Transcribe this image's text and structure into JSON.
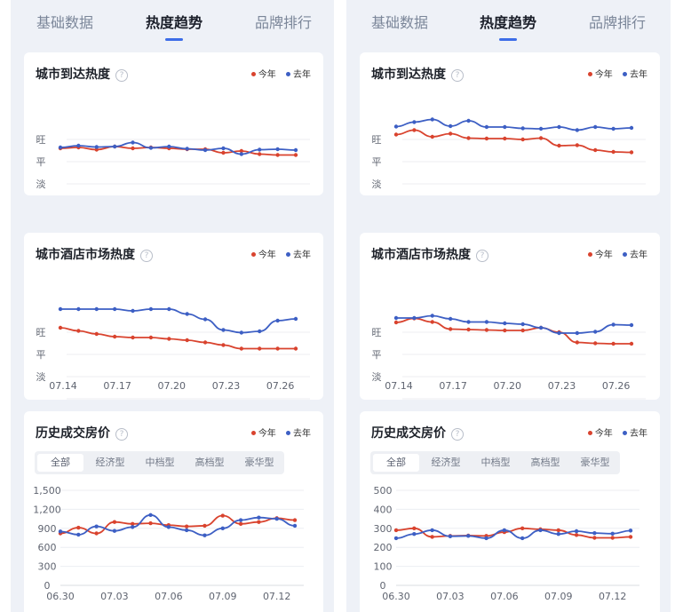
{
  "panels": [
    {
      "tabs": [
        "基础数据",
        "热度趋势",
        "品牌排行"
      ],
      "active_tab": 1,
      "cards": [
        {
          "title": "城市到达热度",
          "legend": [
            "今年",
            "去年"
          ],
          "chart_data": {
            "type": "line",
            "x": [
              "07.14",
              "07.15",
              "07.16",
              "07.17",
              "07.18",
              "07.19",
              "07.20",
              "07.21",
              "07.22",
              "07.23",
              "07.24",
              "07.25",
              "07.26",
              "07.27"
            ],
            "xticks": [
              "07.14",
              "07.17",
              "07.20",
              "07.23",
              "07.26"
            ],
            "yticks": [
              "旺",
              "平",
              "淡"
            ],
            "ylim": [
              0,
              4
            ],
            "series": [
              {
                "name": "今年",
                "values": [
                  2.6,
                  2.64,
                  2.54,
                  2.68,
                  2.6,
                  2.64,
                  2.6,
                  2.56,
                  2.56,
                  2.4,
                  2.48,
                  2.34,
                  2.3,
                  2.3
                ]
              },
              {
                "name": "去年",
                "values": [
                  2.64,
                  2.72,
                  2.66,
                  2.68,
                  2.86,
                  2.62,
                  2.68,
                  2.58,
                  2.52,
                  2.6,
                  2.34,
                  2.54,
                  2.56,
                  2.52
                ]
              }
            ]
          }
        },
        {
          "title": "城市酒店市场热度",
          "legend": [
            "今年",
            "去年"
          ],
          "chart_data": {
            "type": "line",
            "x": [
              "07.14",
              "07.15",
              "07.16",
              "07.17",
              "07.18",
              "07.19",
              "07.20",
              "07.21",
              "07.22",
              "07.23",
              "07.24",
              "07.25",
              "07.26",
              "07.27"
            ],
            "xticks": [
              "07.14",
              "07.17",
              "07.20",
              "07.23",
              "07.26"
            ],
            "yticks": [
              "旺",
              "平",
              "淡"
            ],
            "ylim": [
              0,
              4
            ],
            "series": [
              {
                "name": "今年",
                "values": [
                  3.2,
                  3.06,
                  2.92,
                  2.8,
                  2.76,
                  2.76,
                  2.7,
                  2.64,
                  2.54,
                  2.42,
                  2.26,
                  2.26,
                  2.26,
                  2.26
                ]
              },
              {
                "name": "去年",
                "values": [
                  4.04,
                  4.04,
                  4.04,
                  4.04,
                  3.96,
                  4.04,
                  4.04,
                  3.82,
                  3.58,
                  3.1,
                  2.98,
                  3.04,
                  3.52,
                  3.6
                ]
              }
            ]
          }
        },
        {
          "title": "历史成交房价",
          "legend": [
            "今年",
            "去年"
          ],
          "segments": [
            "全部",
            "经济型",
            "中档型",
            "高档型",
            "豪华型"
          ],
          "active_segment": 0,
          "chart_data": {
            "type": "line",
            "x": [
              "06.30",
              "07.01",
              "07.02",
              "07.03",
              "07.04",
              "07.05",
              "07.06",
              "07.07",
              "07.08",
              "07.09",
              "07.10",
              "07.11",
              "07.12",
              "07.13"
            ],
            "xticks": [
              "06.30",
              "07.03",
              "07.06",
              "07.09",
              "07.12"
            ],
            "yticks": [
              "1,500",
              "1,200",
              "900",
              "600",
              "300",
              "0"
            ],
            "ylim": [
              0,
              1500
            ],
            "series": [
              {
                "name": "今年",
                "values": [
                  820,
                  910,
                  820,
                  1000,
                  970,
                  980,
                  950,
                  930,
                  940,
                  1100,
                  970,
                  1000,
                  1060,
                  1030
                ]
              },
              {
                "name": "去年",
                "values": [
                  850,
                  800,
                  930,
                  860,
                  920,
                  1110,
                  920,
                  870,
                  790,
                  900,
                  1030,
                  1070,
                  1050,
                  940
                ]
              }
            ]
          }
        }
      ]
    },
    {
      "tabs": [
        "基础数据",
        "热度趋势",
        "品牌排行"
      ],
      "active_tab": 1,
      "cards": [
        {
          "title": "城市到达热度",
          "legend": [
            "今年",
            "去年"
          ],
          "chart_data": {
            "type": "line",
            "x": [
              "07.14",
              "07.15",
              "07.16",
              "07.17",
              "07.18",
              "07.19",
              "07.20",
              "07.21",
              "07.22",
              "07.23",
              "07.24",
              "07.25",
              "07.26",
              "07.27"
            ],
            "xticks": [
              "07.14",
              "07.17",
              "07.20",
              "07.23",
              "07.26"
            ],
            "yticks": [
              "旺",
              "平",
              "淡"
            ],
            "ylim": [
              0,
              4
            ],
            "series": [
              {
                "name": "今年",
                "values": [
                  3.22,
                  3.42,
                  3.12,
                  3.26,
                  3.06,
                  3.04,
                  3.04,
                  3.0,
                  3.06,
                  2.72,
                  2.74,
                  2.52,
                  2.44,
                  2.42
                ]
              },
              {
                "name": "去年",
                "values": [
                  3.58,
                  3.78,
                  3.9,
                  3.6,
                  3.84,
                  3.56,
                  3.56,
                  3.5,
                  3.48,
                  3.56,
                  3.42,
                  3.56,
                  3.48,
                  3.52
                ]
              }
            ]
          }
        },
        {
          "title": "城市酒店市场热度",
          "legend": [
            "今年",
            "去年"
          ],
          "chart_data": {
            "type": "line",
            "x": [
              "07.14",
              "07.15",
              "07.16",
              "07.17",
              "07.18",
              "07.19",
              "07.20",
              "07.21",
              "07.22",
              "07.23",
              "07.24",
              "07.25",
              "07.26",
              "07.27"
            ],
            "xticks": [
              "07.14",
              "07.17",
              "07.20",
              "07.23",
              "07.26"
            ],
            "yticks": [
              "旺",
              "平",
              "淡"
            ],
            "ylim": [
              0,
              4
            ],
            "series": [
              {
                "name": "今年",
                "values": [
                  3.44,
                  3.62,
                  3.46,
                  3.14,
                  3.12,
                  3.1,
                  3.08,
                  3.08,
                  3.2,
                  3.0,
                  2.54,
                  2.5,
                  2.48,
                  2.48
                ]
              },
              {
                "name": "去年",
                "values": [
                  3.64,
                  3.64,
                  3.74,
                  3.6,
                  3.46,
                  3.46,
                  3.4,
                  3.36,
                  3.2,
                  2.96,
                  2.96,
                  3.02,
                  3.34,
                  3.32
                ]
              }
            ]
          }
        },
        {
          "title": "历史成交房价",
          "legend": [
            "今年",
            "去年"
          ],
          "segments": [
            "全部",
            "经济型",
            "中档型",
            "高档型",
            "豪华型"
          ],
          "active_segment": 0,
          "chart_data": {
            "type": "line",
            "x": [
              "06.30",
              "07.01",
              "07.02",
              "07.03",
              "07.04",
              "07.05",
              "07.06",
              "07.07",
              "07.08",
              "07.09",
              "07.10",
              "07.11",
              "07.12",
              "07.13"
            ],
            "xticks": [
              "06.30",
              "07.03",
              "07.06",
              "07.09",
              "07.12"
            ],
            "yticks": [
              "500",
              "400",
              "300",
              "200",
              "100",
              "0"
            ],
            "ylim": [
              0,
              500
            ],
            "series": [
              {
                "name": "今年",
                "values": [
                  290,
                  300,
                  255,
                  260,
                  262,
                  260,
                  280,
                  300,
                  295,
                  290,
                  265,
                  250,
                  250,
                  255
                ]
              },
              {
                "name": "去年",
                "values": [
                  248,
                  270,
                  290,
                  258,
                  260,
                  248,
                  290,
                  248,
                  290,
                  270,
                  285,
                  275,
                  272,
                  288
                ]
              }
            ]
          }
        }
      ]
    }
  ],
  "colors": {
    "current_year": "#d9432e",
    "last_year": "#3d5fc4",
    "accent": "#3d6de8"
  }
}
